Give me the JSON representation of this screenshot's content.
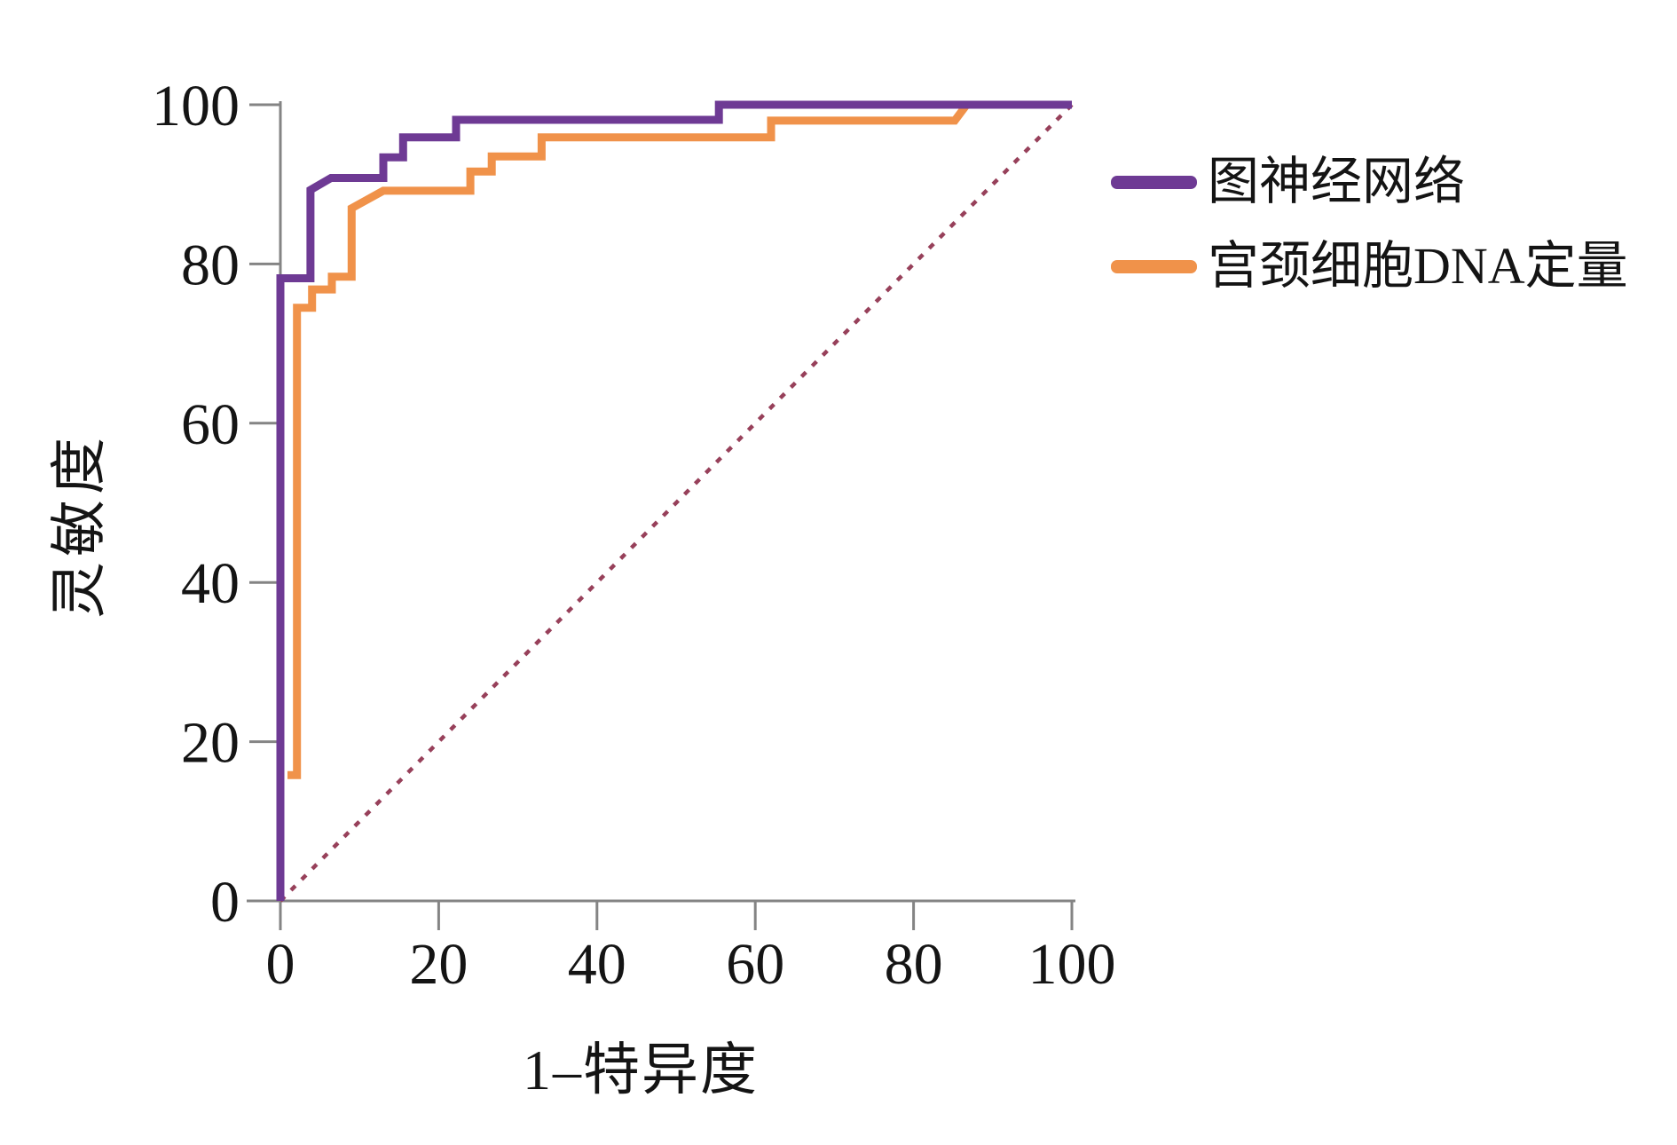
{
  "axes": {
    "x_title": "1–特异度",
    "y_title": "灵敏度"
  },
  "legend": {
    "items": [
      {
        "id": "gnn",
        "label": "图神经网络",
        "color": "#6e3a94"
      },
      {
        "id": "dna-ploidy",
        "label": "宫颈细胞DNA定量",
        "color": "#f0924a"
      }
    ]
  },
  "chart_data": {
    "type": "line",
    "subtype": "roc-step-curves",
    "title": "",
    "xlabel": "1–特异度",
    "ylabel": "灵敏度",
    "xlim": [
      0,
      100
    ],
    "ylim": [
      0,
      100
    ],
    "x_ticks": [
      0,
      20,
      40,
      60,
      80,
      100
    ],
    "y_ticks": [
      0,
      20,
      40,
      60,
      80,
      100
    ],
    "grid": false,
    "legend_position": "outside-right-top",
    "axis_color": "#848484",
    "tick_label_color": "#141414",
    "series": [
      {
        "id": "gnn",
        "name": "图神经网络",
        "color": "#6e3a94",
        "points": [
          [
            0,
            0
          ],
          [
            0,
            78.2
          ],
          [
            3.8,
            78.2
          ],
          [
            3.8,
            89.3
          ],
          [
            6.4,
            90.8
          ],
          [
            13,
            90.8
          ],
          [
            13,
            93.4
          ],
          [
            15.5,
            93.4
          ],
          [
            15.5,
            95.9
          ],
          [
            22.2,
            95.9
          ],
          [
            22.2,
            98.1
          ],
          [
            55.4,
            98.1
          ],
          [
            55.4,
            100
          ],
          [
            100,
            100
          ]
        ]
      },
      {
        "id": "dna-ploidy",
        "name": "宫颈细胞DNA定量",
        "color": "#f0924a",
        "points": [
          [
            0.9,
            15.8
          ],
          [
            2.1,
            15.8
          ],
          [
            2.1,
            74.5
          ],
          [
            4,
            74.5
          ],
          [
            4,
            76.8
          ],
          [
            6.5,
            76.8
          ],
          [
            6.5,
            78.4
          ],
          [
            9,
            78.4
          ],
          [
            9,
            87
          ],
          [
            13,
            89.2
          ],
          [
            24,
            89.2
          ],
          [
            24,
            91.6
          ],
          [
            26.7,
            91.6
          ],
          [
            26.7,
            93.5
          ],
          [
            33,
            93.5
          ],
          [
            33,
            95.9
          ],
          [
            62,
            95.9
          ],
          [
            62,
            98
          ],
          [
            85.2,
            98
          ],
          [
            86.7,
            100
          ],
          [
            100,
            100
          ]
        ]
      }
    ],
    "reference_line": {
      "name": "chance-diagonal",
      "style": "dotted",
      "color": "#97405a",
      "points": [
        [
          0,
          0
        ],
        [
          100,
          100
        ]
      ]
    }
  }
}
